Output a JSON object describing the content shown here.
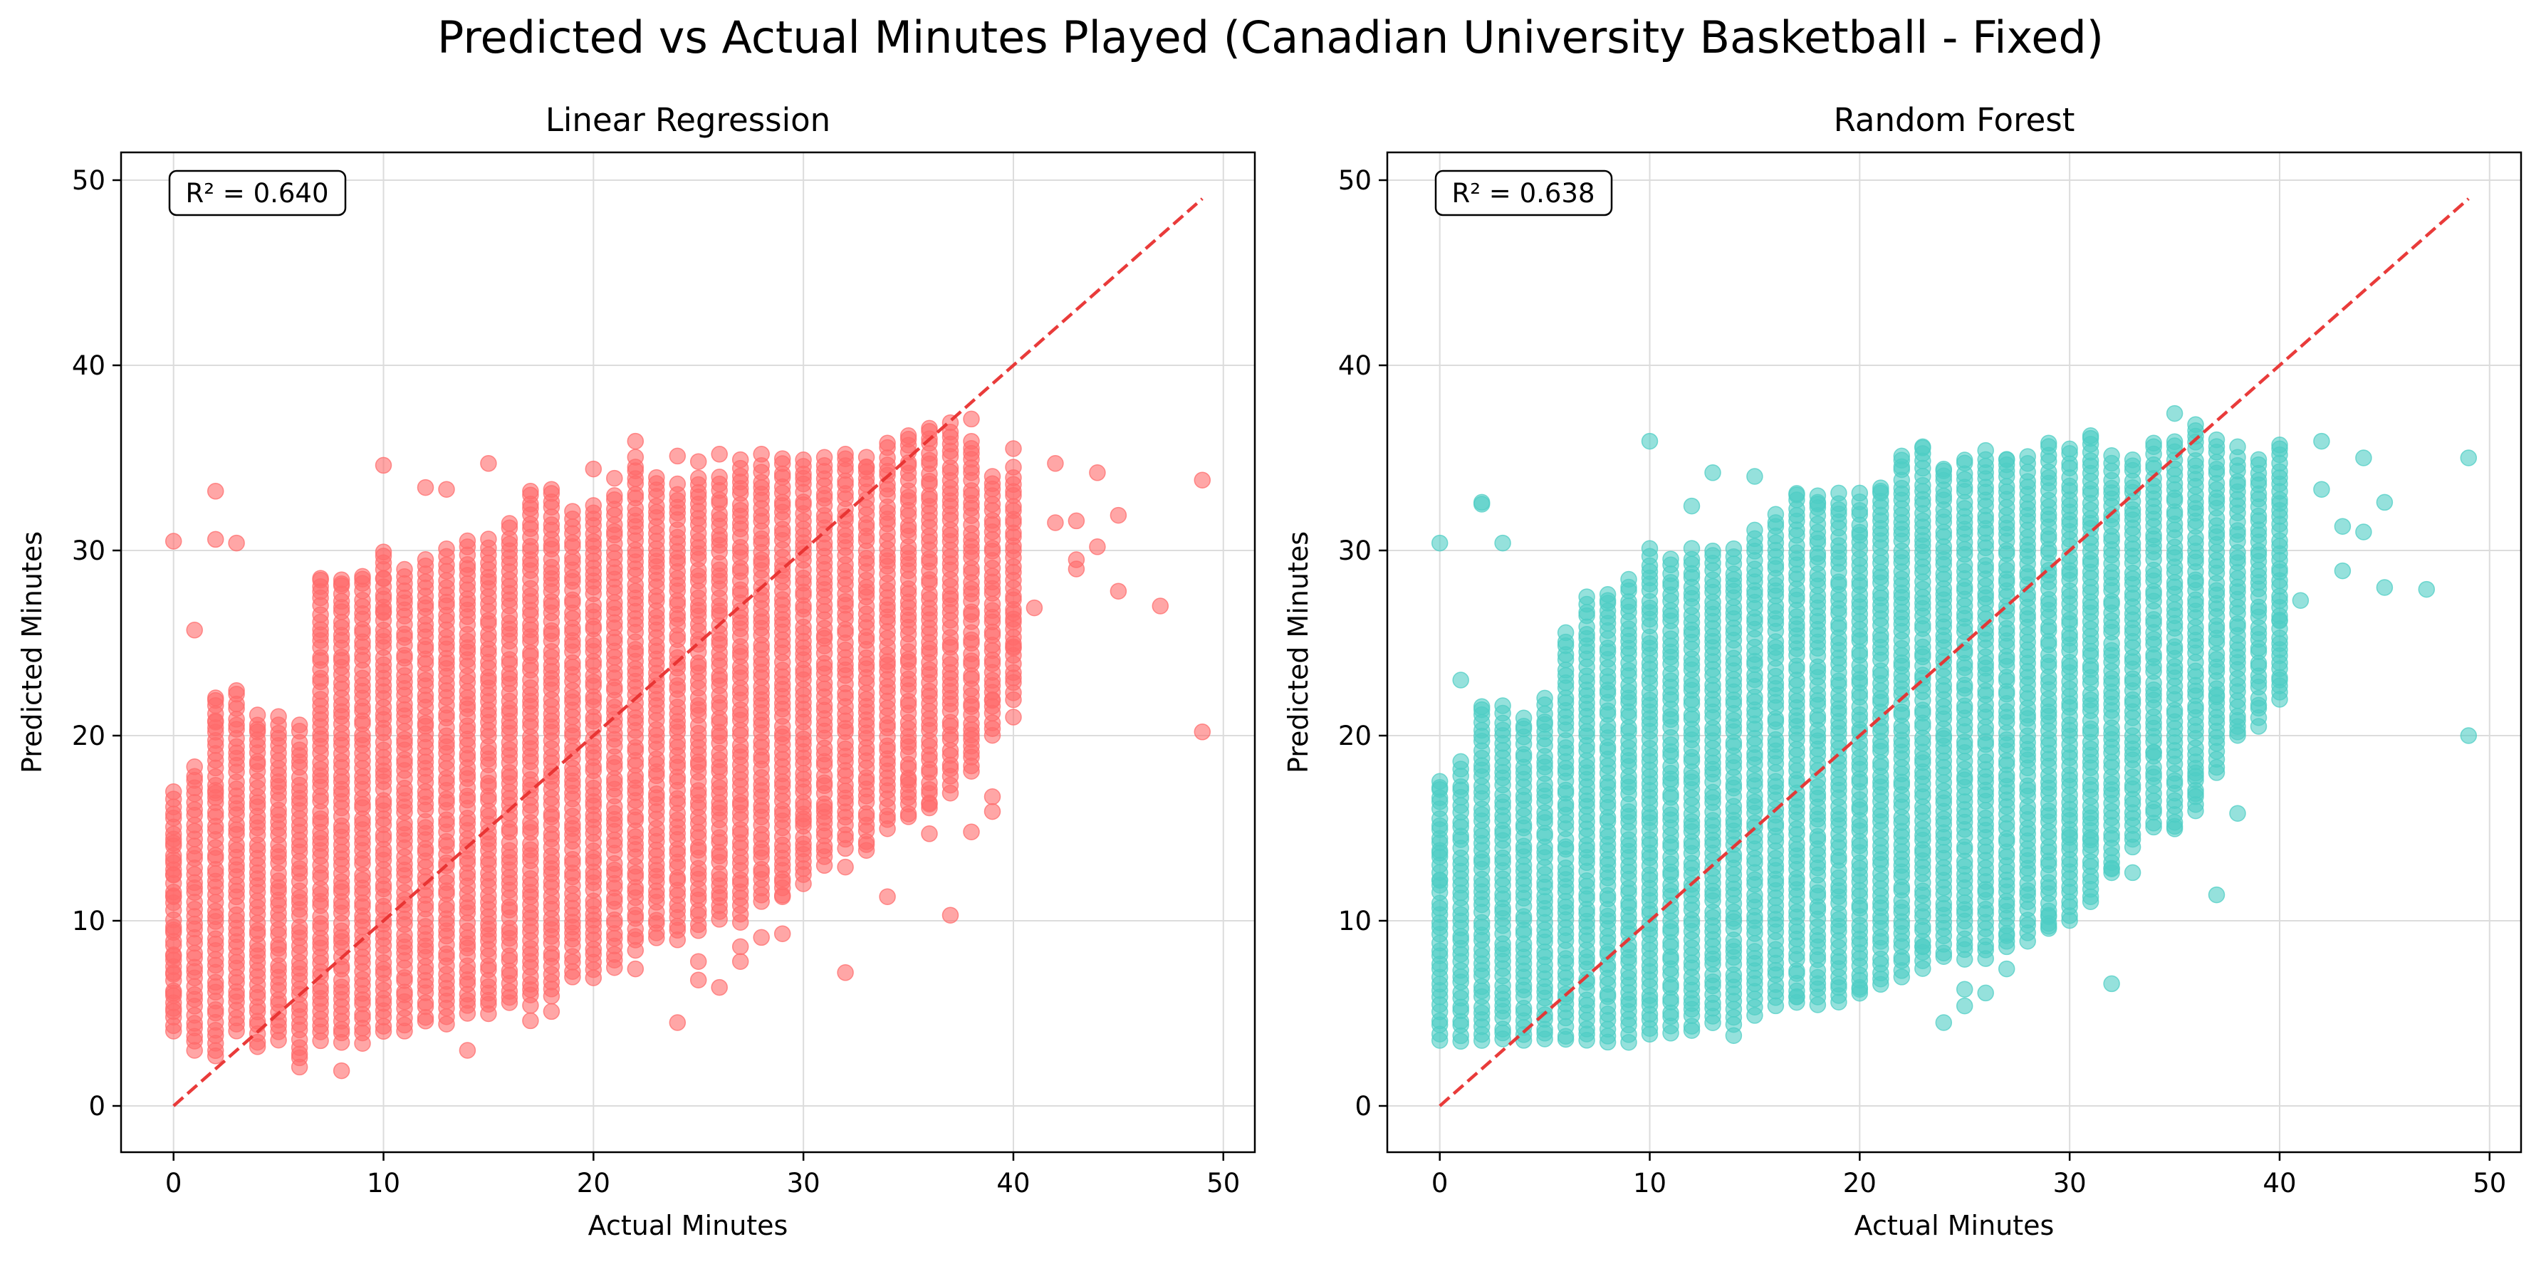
{
  "figure": {
    "suptitle": "Predicted vs Actual Minutes Played (Canadian University Basketball - Fixed)"
  },
  "chart_data": [
    {
      "type": "scatter",
      "title": "Linear Regression",
      "xlabel": "Actual Minutes",
      "ylabel": "Predicted Minutes",
      "xlim": [
        -2.5,
        51.5
      ],
      "ylim": [
        -2.5,
        51.5
      ],
      "xticks": [
        0,
        10,
        20,
        30,
        40,
        50
      ],
      "yticks": [
        0,
        10,
        20,
        30,
        40,
        50
      ],
      "grid": true,
      "annotation": "R² = 0.640",
      "r2": 0.64,
      "point_color": "#ff6b6b",
      "reference_line": {
        "from": [
          0,
          0
        ],
        "to": [
          49,
          49
        ],
        "color": "#e8302f",
        "style": "dashed"
      },
      "bands": [
        [
          0,
          4,
          17
        ],
        [
          1,
          3,
          18.3
        ],
        [
          2,
          3,
          22
        ],
        [
          3,
          4,
          22.5
        ],
        [
          4,
          3.5,
          21
        ],
        [
          5,
          3.5,
          21
        ],
        [
          6,
          2.5,
          20.5
        ],
        [
          7,
          3.5,
          28.5
        ],
        [
          8,
          3.5,
          28.5
        ],
        [
          9,
          3.5,
          28.5
        ],
        [
          10,
          4,
          30
        ],
        [
          11,
          4,
          29
        ],
        [
          12,
          4.5,
          29.5
        ],
        [
          13,
          4.5,
          30
        ],
        [
          14,
          5,
          30.5
        ],
        [
          15,
          5,
          30.5
        ],
        [
          16,
          5.5,
          31.5
        ],
        [
          17,
          5.5,
          33
        ],
        [
          18,
          6,
          33
        ],
        [
          19,
          7,
          32
        ],
        [
          20,
          7,
          32.5
        ],
        [
          21,
          7.5,
          33
        ],
        [
          22,
          8.5,
          35
        ],
        [
          23,
          9,
          34
        ],
        [
          24,
          9,
          33.5
        ],
        [
          25,
          9.5,
          34
        ],
        [
          26,
          10,
          34
        ],
        [
          27,
          10,
          34.5
        ],
        [
          28,
          11,
          34.5
        ],
        [
          29,
          11.5,
          35
        ],
        [
          30,
          12,
          35
        ],
        [
          31,
          13,
          35
        ],
        [
          32,
          14,
          35
        ],
        [
          33,
          14,
          35
        ],
        [
          34,
          15,
          35.5
        ],
        [
          35,
          15.5,
          36
        ],
        [
          36,
          16,
          36.5
        ],
        [
          37,
          17,
          36.5
        ],
        [
          38,
          18,
          36
        ],
        [
          39,
          20,
          34
        ],
        [
          40,
          22,
          34
        ]
      ],
      "points": [
        [
          0,
          30.5
        ],
        [
          0,
          14.2
        ],
        [
          0,
          13.3
        ],
        [
          0,
          12.5
        ],
        [
          0,
          11.3
        ],
        [
          0,
          9.5
        ],
        [
          0,
          8.1
        ],
        [
          0,
          7.2
        ],
        [
          0,
          6.1
        ],
        [
          0,
          5.1
        ],
        [
          1,
          25.7
        ],
        [
          2,
          33.2
        ],
        [
          2,
          30.6
        ],
        [
          2,
          20.8
        ],
        [
          2,
          21.9
        ],
        [
          2,
          16.9
        ],
        [
          3,
          30.4
        ],
        [
          4,
          20.2
        ],
        [
          7,
          28.4
        ],
        [
          8,
          28.1
        ],
        [
          9,
          28.6
        ],
        [
          10,
          34.6
        ],
        [
          10,
          28.5
        ],
        [
          10,
          26.7
        ],
        [
          12,
          33.4
        ],
        [
          13,
          33.3
        ],
        [
          15,
          34.7
        ],
        [
          17,
          33.2
        ],
        [
          18,
          33.3
        ],
        [
          20,
          34.4
        ],
        [
          21,
          33.9
        ],
        [
          22,
          35.9
        ],
        [
          24,
          35.1
        ],
        [
          25,
          34.8
        ],
        [
          26,
          35.2
        ],
        [
          27,
          34.9
        ],
        [
          28,
          35.2
        ],
        [
          32,
          35.2
        ],
        [
          33,
          34.5
        ],
        [
          34,
          35.8
        ],
        [
          35,
          36.2
        ],
        [
          36,
          36.6
        ],
        [
          37,
          36.9
        ],
        [
          38,
          37.1
        ],
        [
          40,
          35.5
        ],
        [
          40,
          34.5
        ],
        [
          42,
          34.7
        ],
        [
          42,
          31.5
        ],
        [
          43,
          31.6
        ],
        [
          44,
          34.2
        ],
        [
          45,
          31.9
        ],
        [
          43,
          29.5
        ],
        [
          43,
          29.0
        ],
        [
          44,
          30.2
        ],
        [
          45,
          27.8
        ],
        [
          47,
          27.0
        ],
        [
          49,
          33.8
        ],
        [
          49,
          20.2
        ],
        [
          41,
          26.9
        ],
        [
          40,
          26.3
        ],
        [
          40,
          24.8
        ],
        [
          40,
          21.0
        ],
        [
          39,
          21.9
        ],
        [
          39,
          16.7
        ],
        [
          39,
          15.9
        ],
        [
          38,
          14.8
        ],
        [
          38,
          19.8
        ],
        [
          37,
          10.3
        ],
        [
          36,
          14.7
        ],
        [
          36,
          16.3
        ],
        [
          35,
          17.6
        ],
        [
          34,
          11.3
        ],
        [
          33,
          13.8
        ],
        [
          32,
          7.2
        ],
        [
          32,
          12.9
        ],
        [
          31,
          15.9
        ],
        [
          30,
          15.5
        ],
        [
          29,
          12.1
        ],
        [
          29,
          11.3
        ],
        [
          29,
          9.3
        ],
        [
          28,
          9.1
        ],
        [
          27,
          8.6
        ],
        [
          27,
          7.8
        ],
        [
          26,
          6.4
        ],
        [
          25,
          6.8
        ],
        [
          25,
          7.8
        ],
        [
          24,
          4.5
        ],
        [
          22,
          7.4
        ],
        [
          17,
          4.6
        ],
        [
          18,
          5.1
        ],
        [
          14,
          3.0
        ],
        [
          8,
          1.9
        ],
        [
          6,
          2.1
        ],
        [
          4,
          3.2
        ],
        [
          2,
          2.7
        ]
      ]
    },
    {
      "type": "scatter",
      "title": "Random Forest",
      "xlabel": "Actual Minutes",
      "ylabel": "Predicted Minutes",
      "xlim": [
        -2.5,
        51.5
      ],
      "ylim": [
        -2.5,
        51.5
      ],
      "xticks": [
        0,
        10,
        20,
        30,
        40,
        50
      ],
      "yticks": [
        0,
        10,
        20,
        30,
        40,
        50
      ],
      "grid": true,
      "annotation": "R² = 0.638",
      "r2": 0.638,
      "point_color": "#4ecdc4",
      "reference_line": {
        "from": [
          0,
          0
        ],
        "to": [
          49,
          49
        ],
        "color": "#e8302f",
        "style": "dashed"
      },
      "bands": [
        [
          0,
          3.5,
          17.5
        ],
        [
          1,
          3.5,
          18.5
        ],
        [
          2,
          3.5,
          21.5
        ],
        [
          3,
          3.5,
          21.5
        ],
        [
          4,
          3.5,
          21
        ],
        [
          5,
          3.5,
          22
        ],
        [
          6,
          3.5,
          25.5
        ],
        [
          7,
          3.5,
          27.5
        ],
        [
          8,
          3.5,
          27.5
        ],
        [
          9,
          3.5,
          28.5
        ],
        [
          10,
          3.8,
          30
        ],
        [
          11,
          4,
          29.5
        ],
        [
          12,
          4,
          30
        ],
        [
          13,
          4.5,
          30
        ],
        [
          14,
          4.5,
          30
        ],
        [
          15,
          5,
          31
        ],
        [
          16,
          5.5,
          32
        ],
        [
          17,
          5.5,
          33
        ],
        [
          18,
          5.5,
          33
        ],
        [
          19,
          5.5,
          33
        ],
        [
          20,
          6,
          33
        ],
        [
          21,
          6.5,
          33.5
        ],
        [
          22,
          7,
          35
        ],
        [
          23,
          7.5,
          35.5
        ],
        [
          24,
          8,
          34.5
        ],
        [
          25,
          8,
          35
        ],
        [
          26,
          8,
          35
        ],
        [
          27,
          8.5,
          35
        ],
        [
          28,
          9,
          35
        ],
        [
          29,
          9.5,
          35.5
        ],
        [
          30,
          10,
          35.5
        ],
        [
          31,
          11,
          36
        ],
        [
          32,
          12.5,
          35
        ],
        [
          33,
          14,
          35
        ],
        [
          34,
          15,
          35.5
        ],
        [
          35,
          15,
          36
        ],
        [
          36,
          16,
          36.5
        ],
        [
          37,
          18,
          36
        ],
        [
          38,
          20,
          35
        ],
        [
          39,
          21,
          35
        ],
        [
          40,
          22,
          35.5
        ]
      ],
      "points": [
        [
          0,
          30.4
        ],
        [
          0,
          17.2
        ],
        [
          0,
          13.8
        ],
        [
          0,
          12.2
        ],
        [
          1,
          23.0
        ],
        [
          2,
          32.5
        ],
        [
          2,
          32.6
        ],
        [
          2,
          21.4
        ],
        [
          3,
          30.4
        ],
        [
          8,
          27.3
        ],
        [
          10,
          35.9
        ],
        [
          12,
          32.4
        ],
        [
          13,
          34.2
        ],
        [
          15,
          34.0
        ],
        [
          17,
          33.0
        ],
        [
          18,
          32.6
        ],
        [
          21,
          33.2
        ],
        [
          22,
          35.1
        ],
        [
          23,
          35.6
        ],
        [
          24,
          34.3
        ],
        [
          26,
          35.4
        ],
        [
          27,
          34.9
        ],
        [
          29,
          35.8
        ],
        [
          31,
          36.2
        ],
        [
          34,
          35.8
        ],
        [
          35,
          37.4
        ],
        [
          36,
          36.8
        ],
        [
          38,
          35.6
        ],
        [
          40,
          35.7
        ],
        [
          42,
          35.9
        ],
        [
          42,
          33.3
        ],
        [
          43,
          31.3
        ],
        [
          43,
          28.9
        ],
        [
          44,
          31.0
        ],
        [
          44,
          35.0
        ],
        [
          45,
          32.6
        ],
        [
          45,
          28.0
        ],
        [
          47,
          27.9
        ],
        [
          49,
          35.0
        ],
        [
          49,
          20.0
        ],
        [
          41,
          27.3
        ],
        [
          40,
          26.2
        ],
        [
          40,
          23.0
        ],
        [
          39,
          20.5
        ],
        [
          38,
          20.2
        ],
        [
          38,
          15.8
        ],
        [
          37,
          11.4
        ],
        [
          37,
          22.2
        ],
        [
          36,
          17.8
        ],
        [
          36,
          16.7
        ],
        [
          35,
          15.1
        ],
        [
          34,
          19.1
        ],
        [
          32,
          6.6
        ],
        [
          32,
          12.8
        ],
        [
          33,
          12.6
        ],
        [
          31,
          14.5
        ],
        [
          30,
          14.5
        ],
        [
          29,
          10.3
        ],
        [
          29,
          9.7
        ],
        [
          27,
          9.2
        ],
        [
          27,
          7.4
        ],
        [
          26,
          6.1
        ],
        [
          25,
          5.4
        ],
        [
          25,
          6.3
        ],
        [
          24,
          4.5
        ],
        [
          23,
          8.6
        ],
        [
          20,
          6.4
        ],
        [
          17,
          5.9
        ],
        [
          14,
          3.8
        ]
      ]
    }
  ]
}
